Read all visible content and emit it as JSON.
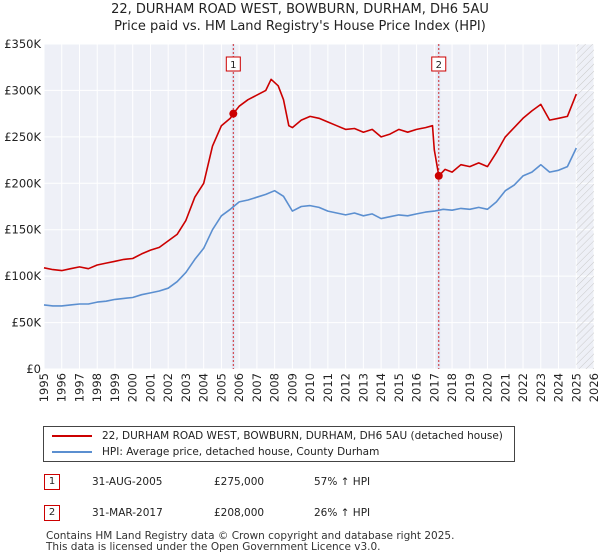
{
  "chart_data": {
    "type": "line",
    "title": "22, DURHAM ROAD WEST, BOWBURN, DURHAM, DH6 5AU",
    "subtitle": "Price paid vs. HM Land Registry's House Price Index (HPI)",
    "xlim": [
      1995,
      2026
    ],
    "ylim": [
      0,
      350000
    ],
    "x_ticks": [
      "1995",
      "1996",
      "1997",
      "1998",
      "1999",
      "2000",
      "2001",
      "2002",
      "2003",
      "2004",
      "2005",
      "2006",
      "2007",
      "2008",
      "2009",
      "2010",
      "2011",
      "2012",
      "2013",
      "2014",
      "2015",
      "2016",
      "2017",
      "2018",
      "2019",
      "2020",
      "2021",
      "2022",
      "2023",
      "2024",
      "2025",
      "2026"
    ],
    "y_ticks": [
      {
        "value": 0,
        "label": "£0"
      },
      {
        "value": 50000,
        "label": "£50K"
      },
      {
        "value": 100000,
        "label": "£100K"
      },
      {
        "value": 150000,
        "label": "£150K"
      },
      {
        "value": 200000,
        "label": "£200K"
      },
      {
        "value": 250000,
        "label": "£250K"
      },
      {
        "value": 300000,
        "label": "£300K"
      },
      {
        "value": 350000,
        "label": "£350K"
      }
    ],
    "grid": true,
    "series": [
      {
        "name": "22, DURHAM ROAD WEST, BOWBURN, DURHAM, DH6 5AU (detached house)",
        "color": "#cc0000",
        "points": [
          [
            1995.0,
            109000
          ],
          [
            1995.5,
            107000
          ],
          [
            1996.0,
            106000
          ],
          [
            1996.5,
            108000
          ],
          [
            1997.0,
            110000
          ],
          [
            1997.5,
            108000
          ],
          [
            1998.0,
            112000
          ],
          [
            1998.5,
            114000
          ],
          [
            1999.0,
            116000
          ],
          [
            1999.5,
            118000
          ],
          [
            2000.0,
            119000
          ],
          [
            2000.5,
            124000
          ],
          [
            2001.0,
            128000
          ],
          [
            2001.5,
            131000
          ],
          [
            2002.0,
            138000
          ],
          [
            2002.5,
            145000
          ],
          [
            2003.0,
            160000
          ],
          [
            2003.5,
            185000
          ],
          [
            2004.0,
            200000
          ],
          [
            2004.5,
            240000
          ],
          [
            2005.0,
            262000
          ],
          [
            2005.5,
            270000
          ],
          [
            2005.67,
            275000
          ],
          [
            2006.0,
            283000
          ],
          [
            2006.5,
            290000
          ],
          [
            2007.0,
            295000
          ],
          [
            2007.5,
            300000
          ],
          [
            2007.8,
            312000
          ],
          [
            2008.2,
            305000
          ],
          [
            2008.5,
            290000
          ],
          [
            2008.8,
            262000
          ],
          [
            2009.0,
            260000
          ],
          [
            2009.5,
            268000
          ],
          [
            2010.0,
            272000
          ],
          [
            2010.5,
            270000
          ],
          [
            2011.0,
            266000
          ],
          [
            2011.5,
            262000
          ],
          [
            2012.0,
            258000
          ],
          [
            2012.5,
            259000
          ],
          [
            2013.0,
            255000
          ],
          [
            2013.5,
            258000
          ],
          [
            2014.0,
            250000
          ],
          [
            2014.5,
            253000
          ],
          [
            2015.0,
            258000
          ],
          [
            2015.5,
            255000
          ],
          [
            2016.0,
            258000
          ],
          [
            2016.5,
            260000
          ],
          [
            2016.9,
            262000
          ],
          [
            2017.0,
            236000
          ],
          [
            2017.25,
            208000
          ],
          [
            2017.6,
            215000
          ],
          [
            2018.0,
            212000
          ],
          [
            2018.5,
            220000
          ],
          [
            2019.0,
            218000
          ],
          [
            2019.5,
            222000
          ],
          [
            2020.0,
            218000
          ],
          [
            2020.5,
            233000
          ],
          [
            2021.0,
            250000
          ],
          [
            2021.5,
            260000
          ],
          [
            2022.0,
            270000
          ],
          [
            2022.5,
            278000
          ],
          [
            2023.0,
            285000
          ],
          [
            2023.5,
            268000
          ],
          [
            2024.0,
            270000
          ],
          [
            2024.5,
            272000
          ],
          [
            2025.0,
            296000
          ]
        ]
      },
      {
        "name": "HPI: Average price, detached house, County Durham",
        "color": "#5b8fd0",
        "points": [
          [
            1995.0,
            69000
          ],
          [
            1995.5,
            68000
          ],
          [
            1996.0,
            68000
          ],
          [
            1996.5,
            69000
          ],
          [
            1997.0,
            70000
          ],
          [
            1997.5,
            70000
          ],
          [
            1998.0,
            72000
          ],
          [
            1998.5,
            73000
          ],
          [
            1999.0,
            75000
          ],
          [
            1999.5,
            76000
          ],
          [
            2000.0,
            77000
          ],
          [
            2000.5,
            80000
          ],
          [
            2001.0,
            82000
          ],
          [
            2001.5,
            84000
          ],
          [
            2002.0,
            87000
          ],
          [
            2002.5,
            94000
          ],
          [
            2003.0,
            104000
          ],
          [
            2003.5,
            118000
          ],
          [
            2004.0,
            130000
          ],
          [
            2004.5,
            150000
          ],
          [
            2005.0,
            165000
          ],
          [
            2005.5,
            172000
          ],
          [
            2006.0,
            180000
          ],
          [
            2006.5,
            182000
          ],
          [
            2007.0,
            185000
          ],
          [
            2007.5,
            188000
          ],
          [
            2008.0,
            192000
          ],
          [
            2008.5,
            186000
          ],
          [
            2009.0,
            170000
          ],
          [
            2009.5,
            175000
          ],
          [
            2010.0,
            176000
          ],
          [
            2010.5,
            174000
          ],
          [
            2011.0,
            170000
          ],
          [
            2011.5,
            168000
          ],
          [
            2012.0,
            166000
          ],
          [
            2012.5,
            168000
          ],
          [
            2013.0,
            165000
          ],
          [
            2013.5,
            167000
          ],
          [
            2014.0,
            162000
          ],
          [
            2014.5,
            164000
          ],
          [
            2015.0,
            166000
          ],
          [
            2015.5,
            165000
          ],
          [
            2016.0,
            167000
          ],
          [
            2016.5,
            169000
          ],
          [
            2017.0,
            170000
          ],
          [
            2017.5,
            172000
          ],
          [
            2018.0,
            171000
          ],
          [
            2018.5,
            173000
          ],
          [
            2019.0,
            172000
          ],
          [
            2019.5,
            174000
          ],
          [
            2020.0,
            172000
          ],
          [
            2020.5,
            180000
          ],
          [
            2021.0,
            192000
          ],
          [
            2021.5,
            198000
          ],
          [
            2022.0,
            208000
          ],
          [
            2022.5,
            212000
          ],
          [
            2023.0,
            220000
          ],
          [
            2023.5,
            212000
          ],
          [
            2024.0,
            214000
          ],
          [
            2024.5,
            218000
          ],
          [
            2025.0,
            238000
          ]
        ]
      }
    ],
    "annotations": [
      {
        "label": "1",
        "x": 2005.67,
        "y": 275000,
        "date": "31-AUG-2005",
        "price": "£275,000",
        "hpi": "57% ↑ HPI"
      },
      {
        "label": "2",
        "x": 2017.25,
        "y": 208000,
        "date": "31-MAR-2017",
        "price": "£208,000",
        "hpi": "26% ↑ HPI"
      }
    ]
  },
  "legend": {
    "property": "22, DURHAM ROAD WEST, BOWBURN, DURHAM, DH6 5AU (detached house)",
    "hpi": "HPI: Average price, detached house, County Durham"
  },
  "footer": {
    "line1": "Contains HM Land Registry data © Crown copyright and database right 2025.",
    "line2": "This data is licensed under the Open Government Licence v3.0."
  }
}
